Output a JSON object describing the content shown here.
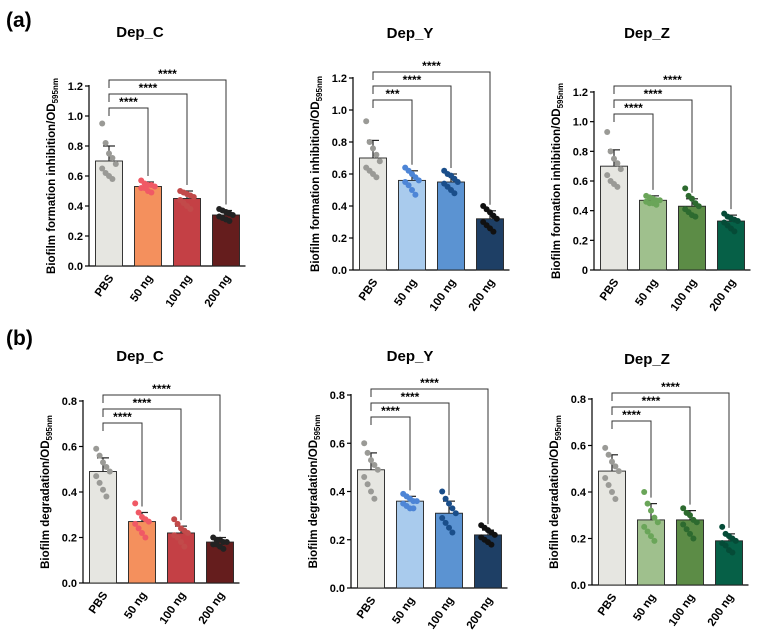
{
  "panel_labels": {
    "a": "(a)",
    "b": "(b)"
  },
  "colors": {
    "PBS": "#e6e6e1",
    "C": [
      "#f4905d",
      "#c44045",
      "#651d1d"
    ],
    "Y": [
      "#a9cbed",
      "#5b93d2",
      "#1e3f65"
    ],
    "Z": [
      "#9fc08d",
      "#5c8c46",
      "#066047"
    ]
  },
  "chart_data": [
    {
      "panel": "a",
      "type": "bar",
      "title": "Dep_C",
      "ylabel": "Biofilm formation inhibition/OD",
      "ylabel_sub": "595nm",
      "ylim": [
        0,
        1.2
      ],
      "yticks": [
        "0.0",
        "0.2",
        "0.4",
        "0.6",
        "0.8",
        "1.0",
        "1.2"
      ],
      "categories": [
        "PBS",
        "50 ng",
        "100 ng",
        "200 ng"
      ],
      "values": [
        0.7,
        0.53,
        0.45,
        0.34
      ],
      "errors": [
        0.1,
        0.03,
        0.05,
        0.03
      ],
      "points": [
        [
          0.95,
          0.82,
          0.75,
          0.72,
          0.68,
          0.65,
          0.62,
          0.6,
          0.58
        ],
        [
          0.57,
          0.55,
          0.54,
          0.54,
          0.53,
          0.52,
          0.52,
          0.5,
          0.49
        ],
        [
          0.5,
          0.49,
          0.48,
          0.47,
          0.46,
          0.44,
          0.42,
          0.4,
          0.38
        ],
        [
          0.38,
          0.37,
          0.36,
          0.35,
          0.34,
          0.33,
          0.32,
          0.31,
          0.3
        ]
      ],
      "comparisons": [
        {
          "to": "50 ng",
          "label": "****"
        },
        {
          "to": "100 ng",
          "label": "****"
        },
        {
          "to": "200 ng",
          "label": "****"
        }
      ]
    },
    {
      "panel": "a",
      "type": "bar",
      "title": "Dep_Y",
      "ylabel": "Biofilm formation inhibition/OD",
      "ylabel_sub": "595nm",
      "ylim": [
        0,
        1.2
      ],
      "yticks": [
        "0.0",
        "0.2",
        "0.4",
        "0.6",
        "0.8",
        "1.0",
        "1.2"
      ],
      "categories": [
        "PBS",
        "50 ng",
        "100 ng",
        "200 ng"
      ],
      "values": [
        0.7,
        0.56,
        0.55,
        0.32
      ],
      "errors": [
        0.11,
        0.06,
        0.05,
        0.05
      ],
      "points": [
        [
          0.93,
          0.8,
          0.76,
          0.72,
          0.68,
          0.64,
          0.62,
          0.6,
          0.58
        ],
        [
          0.64,
          0.62,
          0.6,
          0.58,
          0.56,
          0.55,
          0.53,
          0.5,
          0.47
        ],
        [
          0.62,
          0.6,
          0.59,
          0.57,
          0.55,
          0.54,
          0.52,
          0.5,
          0.48
        ],
        [
          0.4,
          0.38,
          0.36,
          0.34,
          0.32,
          0.3,
          0.28,
          0.26,
          0.24
        ]
      ],
      "comparisons": [
        {
          "to": "50 ng",
          "label": "***"
        },
        {
          "to": "100 ng",
          "label": "****"
        },
        {
          "to": "200 ng",
          "label": "****"
        }
      ]
    },
    {
      "panel": "a",
      "type": "bar",
      "title": "Dep_Z",
      "ylabel": "Biofilm formation inhibition/OD",
      "ylabel_sub": "595nm",
      "ylim": [
        0,
        1.2
      ],
      "yticks": [
        "0",
        "0.2",
        "0.4",
        "0.6",
        "0.8",
        "1.0",
        "1.2"
      ],
      "categories": [
        "PBS",
        "50 ng",
        "100 ng",
        "200 ng"
      ],
      "values": [
        0.7,
        0.47,
        0.43,
        0.33
      ],
      "errors": [
        0.11,
        0.03,
        0.05,
        0.04
      ],
      "points": [
        [
          0.93,
          0.8,
          0.75,
          0.72,
          0.68,
          0.64,
          0.6,
          0.58,
          0.56
        ],
        [
          0.5,
          0.49,
          0.48,
          0.47,
          0.47,
          0.46,
          0.45,
          0.45,
          0.44
        ],
        [
          0.55,
          0.5,
          0.48,
          0.45,
          0.43,
          0.41,
          0.39,
          0.37,
          0.36
        ],
        [
          0.38,
          0.36,
          0.35,
          0.34,
          0.33,
          0.32,
          0.3,
          0.28,
          0.26
        ]
      ],
      "comparisons": [
        {
          "to": "50 ng",
          "label": "****"
        },
        {
          "to": "100 ng",
          "label": "****"
        },
        {
          "to": "200 ng",
          "label": "****"
        }
      ]
    },
    {
      "panel": "b",
      "type": "bar",
      "title": "Dep_C",
      "ylabel": "Biofilm degradation/OD",
      "ylabel_sub": "595nm",
      "ylim": [
        0,
        0.8
      ],
      "yticks": [
        "0.0",
        "0.2",
        "0.4",
        "0.6",
        "0.8"
      ],
      "categories": [
        "PBS",
        "50 ng",
        "100 ng",
        "200 ng"
      ],
      "values": [
        0.49,
        0.27,
        0.22,
        0.18
      ],
      "errors": [
        0.06,
        0.04,
        0.03,
        0.02
      ],
      "points": [
        [
          0.59,
          0.56,
          0.53,
          0.51,
          0.49,
          0.47,
          0.44,
          0.41,
          0.38
        ],
        [
          0.35,
          0.31,
          0.29,
          0.28,
          0.27,
          0.26,
          0.24,
          0.22,
          0.2
        ],
        [
          0.28,
          0.26,
          0.24,
          0.23,
          0.22,
          0.21,
          0.2,
          0.18,
          0.16
        ],
        [
          0.2,
          0.19,
          0.19,
          0.18,
          0.18,
          0.17,
          0.17,
          0.16,
          0.15
        ]
      ],
      "comparisons": [
        {
          "to": "50 ng",
          "label": "****"
        },
        {
          "to": "100 ng",
          "label": "****"
        },
        {
          "to": "200 ng",
          "label": "****"
        }
      ]
    },
    {
      "panel": "b",
      "type": "bar",
      "title": "Dep_Y",
      "ylabel": "Biofilm degradation/OD",
      "ylabel_sub": "595nm",
      "ylim": [
        0,
        0.8
      ],
      "yticks": [
        "0.0",
        "0.2",
        "0.4",
        "0.6",
        "0.8"
      ],
      "categories": [
        "PBS",
        "50 ng",
        "100 ng",
        "200 ng"
      ],
      "values": [
        0.49,
        0.36,
        0.31,
        0.22
      ],
      "errors": [
        0.07,
        0.02,
        0.05,
        0.02
      ],
      "points": [
        [
          0.6,
          0.56,
          0.53,
          0.51,
          0.49,
          0.46,
          0.43,
          0.4,
          0.37
        ],
        [
          0.39,
          0.38,
          0.37,
          0.36,
          0.36,
          0.35,
          0.34,
          0.33,
          0.33
        ],
        [
          0.4,
          0.37,
          0.35,
          0.33,
          0.31,
          0.29,
          0.27,
          0.25,
          0.23
        ],
        [
          0.26,
          0.25,
          0.24,
          0.23,
          0.22,
          0.21,
          0.2,
          0.19,
          0.18
        ]
      ],
      "comparisons": [
        {
          "to": "50 ng",
          "label": "****"
        },
        {
          "to": "100 ng",
          "label": "****"
        },
        {
          "to": "200 ng",
          "label": "****"
        }
      ]
    },
    {
      "panel": "b",
      "type": "bar",
      "title": "Dep_Z",
      "ylabel": "Biofilm degradation/OD",
      "ylabel_sub": "595nm",
      "ylim": [
        0,
        0.8
      ],
      "yticks": [
        "0.0",
        "0.2",
        "0.4",
        "0.6",
        "0.8"
      ],
      "categories": [
        "PBS",
        "50 ng",
        "100 ng",
        "200 ng"
      ],
      "values": [
        0.49,
        0.28,
        0.28,
        0.19
      ],
      "errors": [
        0.07,
        0.07,
        0.04,
        0.03
      ],
      "points": [
        [
          0.59,
          0.56,
          0.53,
          0.51,
          0.49,
          0.46,
          0.43,
          0.4,
          0.37
        ],
        [
          0.4,
          0.35,
          0.32,
          0.29,
          0.27,
          0.25,
          0.23,
          0.21,
          0.19
        ],
        [
          0.33,
          0.31,
          0.3,
          0.28,
          0.27,
          0.26,
          0.24,
          0.22,
          0.2
        ],
        [
          0.25,
          0.22,
          0.21,
          0.2,
          0.19,
          0.18,
          0.17,
          0.15,
          0.14
        ]
      ],
      "comparisons": [
        {
          "to": "50 ng",
          "label": "****"
        },
        {
          "to": "100 ng",
          "label": "****"
        },
        {
          "to": "200 ng",
          "label": "****"
        }
      ]
    }
  ]
}
